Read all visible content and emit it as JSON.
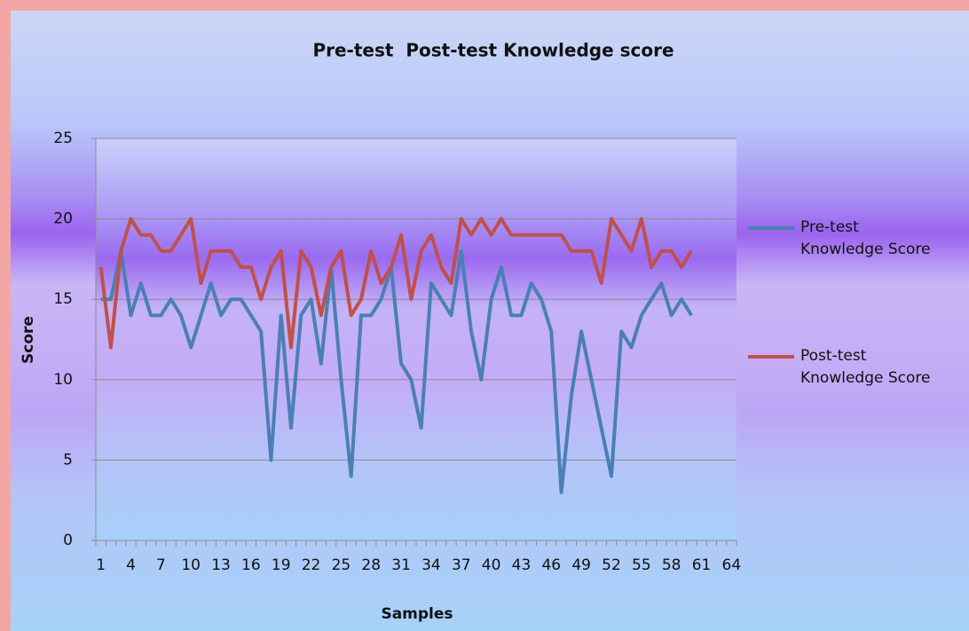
{
  "chart_data": {
    "type": "line",
    "title": "Pre-test  Post-test Knowledge score",
    "x_label": "Samples",
    "y_label": "Score",
    "categories": [
      1,
      null,
      null,
      4,
      null,
      null,
      7,
      null,
      null,
      10,
      null,
      null,
      13,
      null,
      null,
      16,
      null,
      null,
      19,
      null,
      null,
      22,
      null,
      null,
      25,
      null,
      null,
      28,
      null,
      null,
      31,
      null,
      null,
      34,
      null,
      null,
      37,
      null,
      null,
      40,
      null,
      null,
      43,
      null,
      null,
      46,
      null,
      null,
      49,
      null,
      null,
      52,
      null,
      null,
      55,
      null,
      null,
      58,
      null,
      null,
      61,
      null,
      null,
      64
    ],
    "series": [
      {
        "name": "Pre-test Knowledge Score",
        "color": "#4a7fb5",
        "values": [
          15,
          15,
          18,
          14,
          16,
          14,
          14,
          15,
          14,
          12,
          14,
          16,
          14,
          15,
          15,
          14,
          13,
          5,
          14,
          7,
          14,
          15,
          11,
          17,
          10,
          4,
          14,
          14,
          15,
          17,
          11,
          10,
          7,
          16,
          15,
          14,
          18,
          13,
          10,
          15,
          17,
          14,
          14,
          16,
          15,
          13,
          3,
          9,
          13,
          10,
          7,
          4,
          13,
          12,
          14,
          15,
          16,
          14,
          15,
          14,
          null,
          null,
          null,
          null
        ]
      },
      {
        "name": "Post-test Knowledge Score",
        "color": "#c0504d",
        "values": [
          17,
          12,
          18,
          20,
          19,
          19,
          18,
          18,
          19,
          20,
          16,
          18,
          18,
          18,
          17,
          17,
          15,
          17,
          18,
          12,
          18,
          17,
          14,
          17,
          18,
          14,
          15,
          18,
          16,
          17,
          19,
          15,
          18,
          19,
          17,
          16,
          20,
          19,
          20,
          19,
          20,
          19,
          19,
          19,
          19,
          19,
          19,
          18,
          18,
          18,
          16,
          20,
          19,
          18,
          20,
          17,
          18,
          18,
          17,
          18,
          null,
          null,
          null,
          null
        ]
      }
    ],
    "ylim": [
      0,
      25
    ],
    "yticks": [
      0,
      5,
      10,
      15,
      20,
      25
    ],
    "grid": true,
    "legend": "right"
  }
}
